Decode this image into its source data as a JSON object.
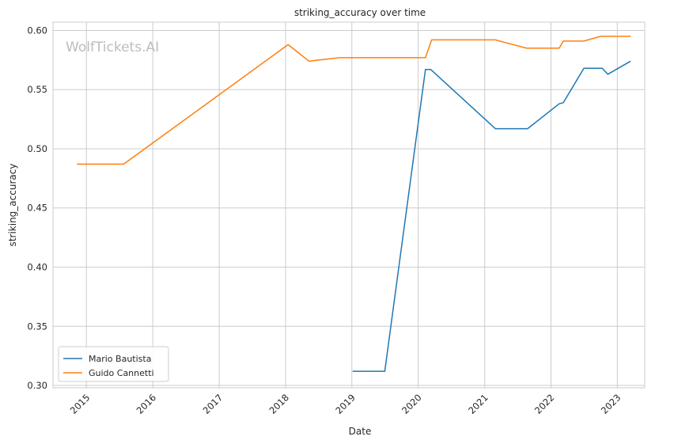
{
  "chart_data": {
    "type": "line",
    "title": "striking_accuracy over time",
    "xlabel": "Date",
    "ylabel": "striking_accuracy",
    "watermark": "WolfTickets.AI",
    "grid": true,
    "legend_position": "lower-left",
    "xlim": [
      "2014-07-01",
      "2023-06-01"
    ],
    "ylim": [
      0.298,
      0.607
    ],
    "x_ticks": [
      "2015",
      "2016",
      "2017",
      "2018",
      "2019",
      "2020",
      "2021",
      "2022",
      "2023"
    ],
    "y_ticks": [
      "0.30",
      "0.35",
      "0.40",
      "0.45",
      "0.50",
      "0.55",
      "0.60"
    ],
    "series": [
      {
        "name": "Mario Bautista",
        "color": "#1f77b4",
        "points": [
          [
            "2019-01-05",
            0.312
          ],
          [
            "2019-07-01",
            0.312
          ],
          [
            "2020-02-10",
            0.567
          ],
          [
            "2020-03-10",
            0.567
          ],
          [
            "2021-03-01",
            0.517
          ],
          [
            "2021-08-25",
            0.517
          ],
          [
            "2022-02-15",
            0.538
          ],
          [
            "2022-03-10",
            0.539
          ],
          [
            "2022-07-01",
            0.568
          ],
          [
            "2022-10-10",
            0.568
          ],
          [
            "2022-11-10",
            0.563
          ],
          [
            "2023-03-15",
            0.574
          ]
        ]
      },
      {
        "name": "Guido Cannetti",
        "color": "#ff7f0e",
        "points": [
          [
            "2014-11-10",
            0.487
          ],
          [
            "2015-07-25",
            0.487
          ],
          [
            "2018-01-15",
            0.588
          ],
          [
            "2018-05-10",
            0.574
          ],
          [
            "2018-10-25",
            0.577
          ],
          [
            "2020-02-10",
            0.577
          ],
          [
            "2020-03-15",
            0.592
          ],
          [
            "2021-03-01",
            0.592
          ],
          [
            "2021-08-20",
            0.585
          ],
          [
            "2022-02-15",
            0.585
          ],
          [
            "2022-03-10",
            0.591
          ],
          [
            "2022-07-01",
            0.591
          ],
          [
            "2022-10-01",
            0.595
          ],
          [
            "2023-03-15",
            0.595
          ]
        ]
      }
    ]
  }
}
